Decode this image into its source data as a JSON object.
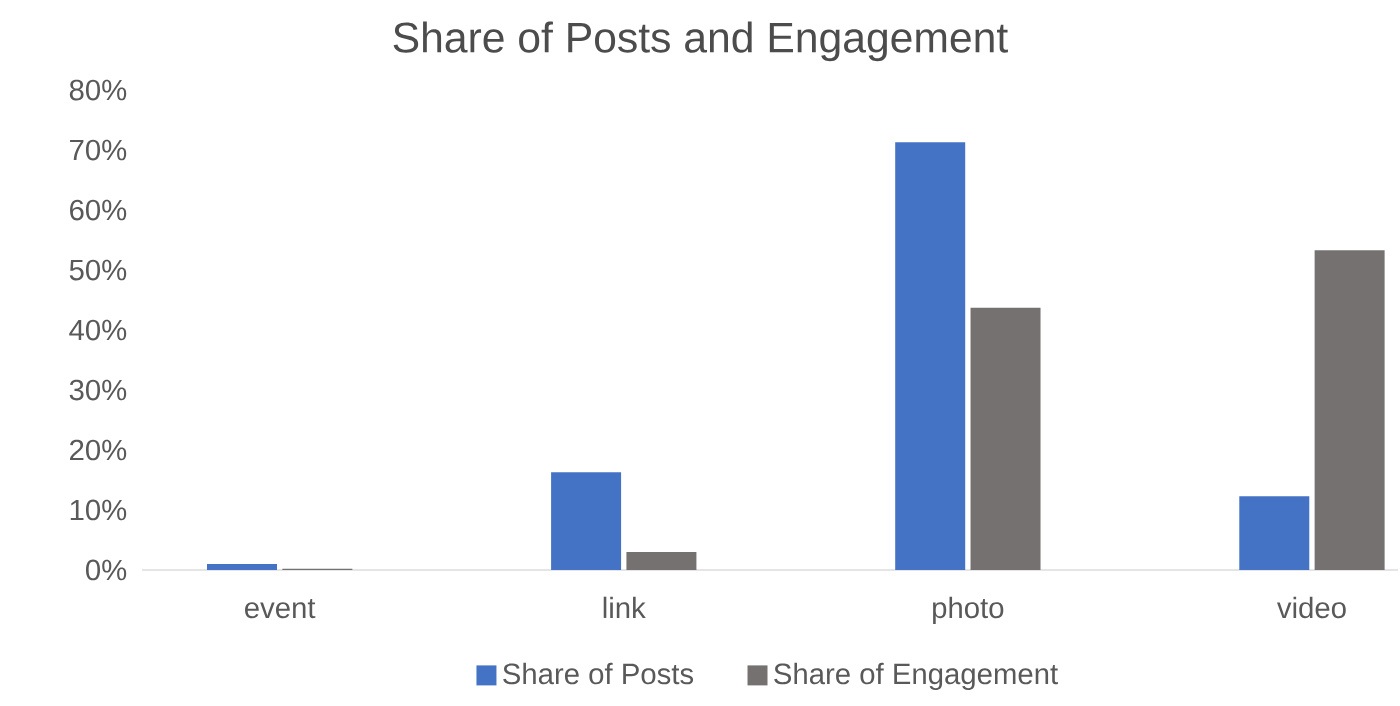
{
  "chart_data": {
    "type": "bar",
    "title": "Share of Posts and Engagement",
    "categories": [
      "event",
      "link",
      "photo",
      "video"
    ],
    "series": [
      {
        "name": "Share of Posts",
        "color": "#4472c4",
        "values": [
          1,
          16.3,
          71.3,
          12.3
        ]
      },
      {
        "name": "Share of Engagement",
        "color": "#767171",
        "values": [
          0.2,
          3,
          43.7,
          53.3
        ]
      }
    ],
    "ylim": [
      0,
      80
    ],
    "yticks": [
      {
        "value": 0,
        "label": "0%"
      },
      {
        "value": 10,
        "label": "10%"
      },
      {
        "value": 20,
        "label": "20%"
      },
      {
        "value": 30,
        "label": "30%"
      },
      {
        "value": 40,
        "label": "40%"
      },
      {
        "value": 50,
        "label": "50%"
      },
      {
        "value": 60,
        "label": "60%"
      },
      {
        "value": 70,
        "label": "70%"
      },
      {
        "value": 80,
        "label": "80%"
      }
    ],
    "legend": "bottom"
  }
}
